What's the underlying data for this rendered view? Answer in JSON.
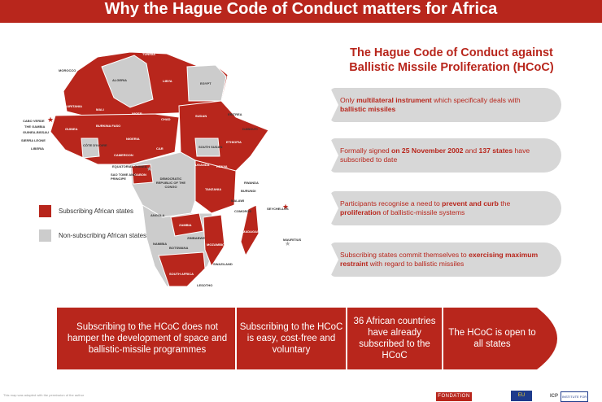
{
  "header": {
    "title": "Why the Hague Code of Conduct matters for Africa"
  },
  "legend": {
    "subscribing": {
      "label": "Subscribing African states",
      "color": "#b8261c"
    },
    "non_subscribing": {
      "label": "Non-subscribing African states",
      "color": "#cccccc"
    }
  },
  "map_labels": {
    "tunisia": "TUNISIA",
    "morocco": "MOROCCO",
    "algeria": "ALGERIA",
    "libya": "LIBYA",
    "egypt": "EGYPT",
    "mauritania": "MAURITANIA",
    "mali": "MALI",
    "niger": "NIGER",
    "chad": "CHAD",
    "sudan": "SUDAN",
    "eritrea": "ERITREA",
    "djibouti": "DJIBOUTI",
    "ethiopia": "ETHIOPIA",
    "nigeria": "NIGERIA",
    "cameroon": "CAMEROON",
    "car": "CAR",
    "south_sudan": "SOUTH SUDAN",
    "kenya": "KENYA",
    "uganda": "UGANDA",
    "gabon": "GABON",
    "drc": "DEMOCRATIC REPUBLIC OF THE CONGO",
    "tanzania": "TANZANIA",
    "rwanda": "RWANDA",
    "burundi": "BURUNDI",
    "malawi": "MALAWI",
    "comoros": "COMOROS",
    "seychelles": "SEYCHELLES",
    "madagascar": "MADAGASCAR",
    "mauritius": "MAURITIUS",
    "angola": "ANGOLA",
    "zambia": "ZAMBIA",
    "zimbabwe": "ZIMBABWE",
    "mozambique": "MOZAMBIQUE",
    "namibia": "NAMIBIA",
    "botswana": "BOTSWANA",
    "south_africa": "SOUTH AFRICA",
    "swaziland": "SWAZILAND",
    "lesotho": "LESOTHO",
    "cabo_verde": "CABO VERDE",
    "gambia": "THE GAMBIA",
    "guinea_bissau": "GUINEA-BISSAU",
    "sierra_leone": "SIERRA LEONE",
    "liberia": "LIBERIA",
    "guinea": "GUINEA",
    "cote_divoire": "CÔTE D'IVOIRE",
    "burkina_faso": "BURKINA FASO",
    "equatorial_guinea": "EQUATORIAL GUINEA",
    "sao_tome": "SAO TOME AND PRINCIPE"
  },
  "panel": {
    "title_line1": "The Hague Code of Conduct against",
    "title_line2": "Ballistic Missile Proliferation (HCoC)",
    "items": [
      {
        "a": "Only ",
        "b": "multilateral instrument",
        "c": " which specifically deals with ",
        "d": "ballistic missiles",
        "e": ""
      },
      {
        "a": "Formally signed ",
        "b": "on 25 November 2002",
        "c": " and ",
        "d": "137 states",
        "e": " have subscribed to date"
      },
      {
        "a": "Participants recognise a need to ",
        "b": "prevent and curb",
        "c": " the ",
        "d": "proliferation",
        "e": " of ballistic-missile systems"
      },
      {
        "a": "Subscribing states commit themselves to ",
        "b": "exercising maximum restraint",
        "c": " with regard to ballistic missiles",
        "d": "",
        "e": ""
      }
    ]
  },
  "arrow": {
    "seg1": "Subscribing to the HCoC does not hamper the development of space and ballistic-missile programmes",
    "seg2": "Subscribing to the HCoC is easy, cost-free and voluntary",
    "seg3": "36 African countries have already subscribed to the HCoC",
    "seg4": "The HCoC is open to all states"
  },
  "footer": {
    "note": "This map was adapted with the permission of the author",
    "fondation": "FONDATION",
    "eu": "EU",
    "icp": "ICP",
    "icp_sub": "INSTITUTE FOR"
  }
}
